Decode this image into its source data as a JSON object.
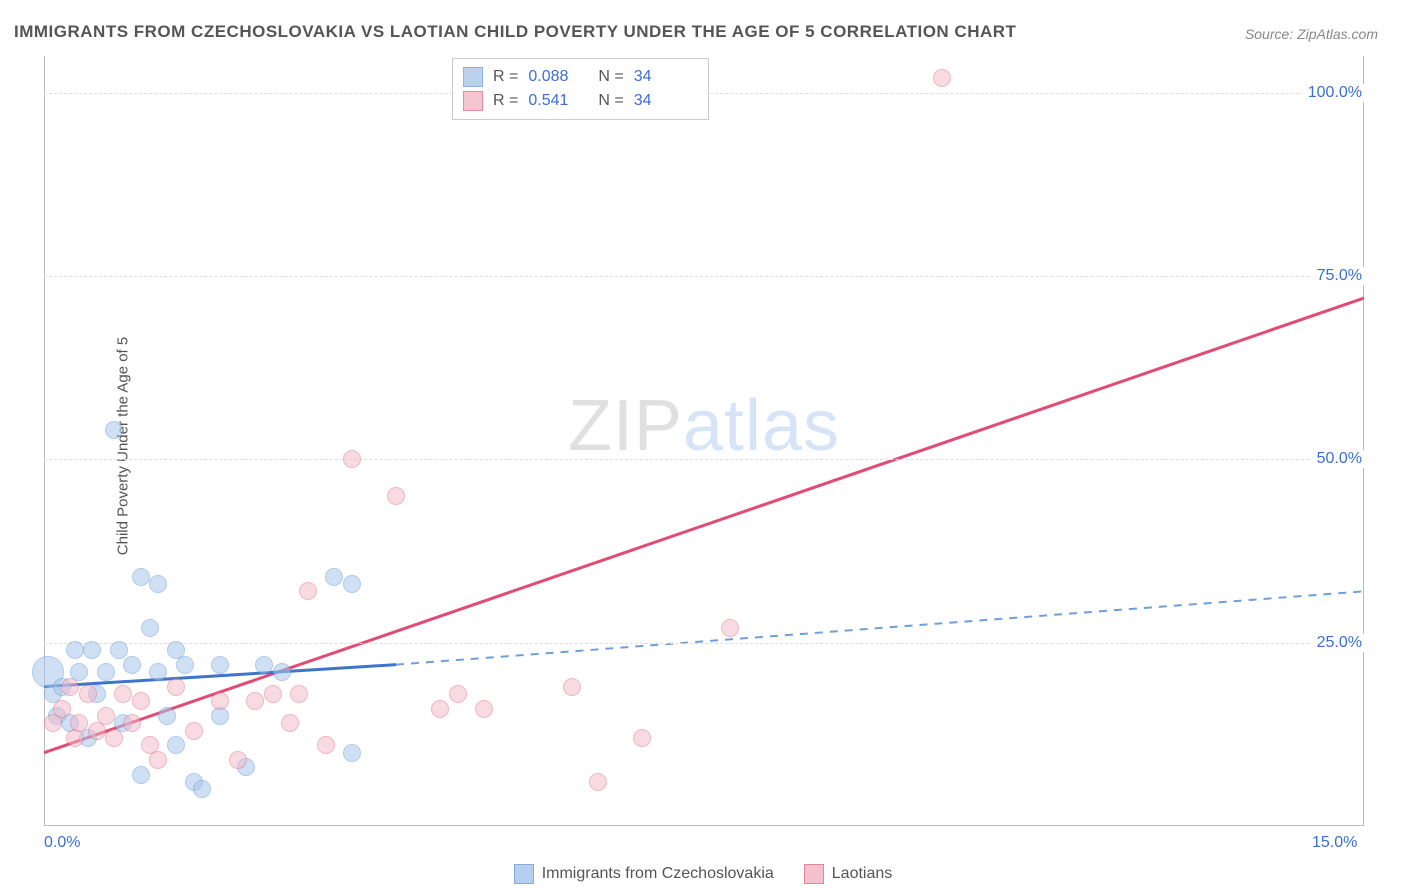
{
  "title": "IMMIGRANTS FROM CZECHOSLOVAKIA VS LAOTIAN CHILD POVERTY UNDER THE AGE OF 5 CORRELATION CHART",
  "source": "Source: ZipAtlas.com",
  "ylabel": "Child Poverty Under the Age of 5",
  "watermark_a": "ZIP",
  "watermark_b": "atlas",
  "chart": {
    "type": "scatter",
    "xlim": [
      0,
      15
    ],
    "ylim": [
      0,
      105
    ],
    "yticks": [
      {
        "v": 25,
        "label": "25.0%"
      },
      {
        "v": 50,
        "label": "50.0%"
      },
      {
        "v": 75,
        "label": "75.0%"
      },
      {
        "v": 100,
        "label": "100.0%"
      }
    ],
    "xticks": [
      {
        "v": 0,
        "label": "0.0%"
      },
      {
        "v": 15,
        "label": "15.0%"
      }
    ],
    "grid_color": "#dddddd",
    "series": [
      {
        "name": "Immigrants from Czechoslovakia",
        "fill": "#a9c7ec",
        "stroke": "#6f9fd8",
        "fill_opacity": 0.55,
        "marker_radius": 9,
        "R": "0.088",
        "N": "34",
        "trend": {
          "x1": 0,
          "y1": 19,
          "x2": 4.0,
          "y2": 22,
          "x2b": 15,
          "y2b": 32,
          "solid_color": "#3e74c9",
          "dash_color": "#6f9fd8"
        },
        "points": [
          {
            "x": 0.05,
            "y": 21,
            "r": 16
          },
          {
            "x": 0.1,
            "y": 18
          },
          {
            "x": 0.15,
            "y": 15
          },
          {
            "x": 0.2,
            "y": 19
          },
          {
            "x": 0.3,
            "y": 14
          },
          {
            "x": 0.35,
            "y": 24
          },
          {
            "x": 0.4,
            "y": 21
          },
          {
            "x": 0.5,
            "y": 12
          },
          {
            "x": 0.55,
            "y": 24
          },
          {
            "x": 0.6,
            "y": 18
          },
          {
            "x": 0.7,
            "y": 21
          },
          {
            "x": 0.8,
            "y": 54
          },
          {
            "x": 0.85,
            "y": 24
          },
          {
            "x": 0.9,
            "y": 14
          },
          {
            "x": 1.0,
            "y": 22
          },
          {
            "x": 1.1,
            "y": 34
          },
          {
            "x": 1.1,
            "y": 7
          },
          {
            "x": 1.2,
            "y": 27
          },
          {
            "x": 1.3,
            "y": 21
          },
          {
            "x": 1.3,
            "y": 33
          },
          {
            "x": 1.4,
            "y": 15
          },
          {
            "x": 1.5,
            "y": 11
          },
          {
            "x": 1.5,
            "y": 24
          },
          {
            "x": 1.6,
            "y": 22
          },
          {
            "x": 1.7,
            "y": 6
          },
          {
            "x": 1.8,
            "y": 5
          },
          {
            "x": 2.0,
            "y": 22
          },
          {
            "x": 2.0,
            "y": 15
          },
          {
            "x": 2.3,
            "y": 8
          },
          {
            "x": 2.5,
            "y": 22
          },
          {
            "x": 2.7,
            "y": 21
          },
          {
            "x": 3.3,
            "y": 34
          },
          {
            "x": 3.5,
            "y": 33
          },
          {
            "x": 3.5,
            "y": 10
          }
        ]
      },
      {
        "name": "Laotians",
        "fill": "#f2b8c6",
        "stroke": "#e06f8b",
        "fill_opacity": 0.5,
        "marker_radius": 9,
        "R": "0.541",
        "N": "34",
        "trend": {
          "x1": 0,
          "y1": 10,
          "x2": 15,
          "y2": 72,
          "solid_color": "#e24b74",
          "dash_color": "#e06f8b"
        },
        "points": [
          {
            "x": 0.1,
            "y": 14
          },
          {
            "x": 0.2,
            "y": 16
          },
          {
            "x": 0.3,
            "y": 19
          },
          {
            "x": 0.35,
            "y": 12
          },
          {
            "x": 0.4,
            "y": 14
          },
          {
            "x": 0.5,
            "y": 18
          },
          {
            "x": 0.6,
            "y": 13
          },
          {
            "x": 0.7,
            "y": 15
          },
          {
            "x": 0.8,
            "y": 12
          },
          {
            "x": 0.9,
            "y": 18
          },
          {
            "x": 1.0,
            "y": 14
          },
          {
            "x": 1.1,
            "y": 17
          },
          {
            "x": 1.2,
            "y": 11
          },
          {
            "x": 1.3,
            "y": 9
          },
          {
            "x": 1.5,
            "y": 19
          },
          {
            "x": 1.7,
            "y": 13
          },
          {
            "x": 2.0,
            "y": 17
          },
          {
            "x": 2.2,
            "y": 9
          },
          {
            "x": 2.4,
            "y": 17
          },
          {
            "x": 2.6,
            "y": 18
          },
          {
            "x": 2.8,
            "y": 14
          },
          {
            "x": 2.9,
            "y": 18
          },
          {
            "x": 3.0,
            "y": 32
          },
          {
            "x": 3.2,
            "y": 11
          },
          {
            "x": 3.5,
            "y": 50
          },
          {
            "x": 4.0,
            "y": 45
          },
          {
            "x": 4.5,
            "y": 16
          },
          {
            "x": 4.7,
            "y": 18
          },
          {
            "x": 5.0,
            "y": 16
          },
          {
            "x": 6.0,
            "y": 19
          },
          {
            "x": 6.3,
            "y": 6
          },
          {
            "x": 6.8,
            "y": 12
          },
          {
            "x": 7.8,
            "y": 27
          },
          {
            "x": 10.2,
            "y": 102
          }
        ]
      }
    ]
  },
  "legend_bottom": [
    {
      "label": "Immigrants from Czechoslovakia",
      "fill": "#a9c7ec",
      "stroke": "#6f9fd8"
    },
    {
      "label": "Laotians",
      "fill": "#f2b8c6",
      "stroke": "#e06f8b"
    }
  ],
  "legend_top_labels": {
    "R": "R =",
    "N": "N ="
  }
}
